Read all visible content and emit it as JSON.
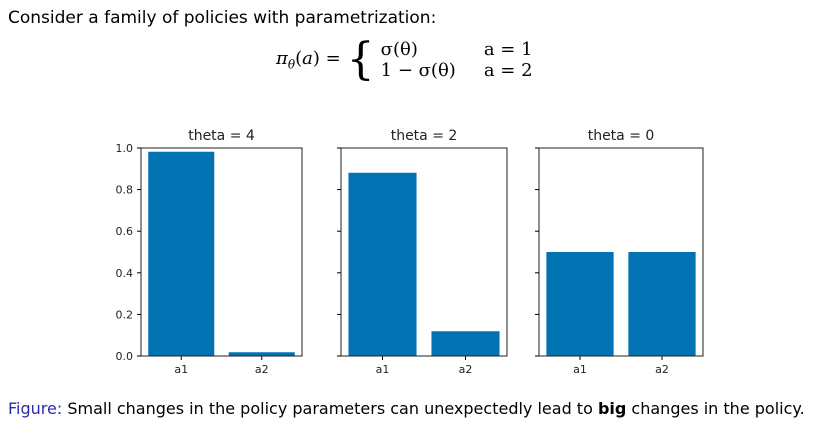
{
  "intro": "Consider a family of policies with parametrization:",
  "equation": {
    "lhs": "πθ(a) =",
    "cases": [
      {
        "expr": "σ(θ)",
        "cond": "a = 1"
      },
      {
        "expr": "1 − σ(θ)",
        "cond": "a = 2"
      }
    ]
  },
  "caption": {
    "label": "Figure:",
    "text_before": " Small changes in the policy parameters can unexpectedly lead to ",
    "bold": "big",
    "text_after": " changes in the policy."
  },
  "colors": {
    "bar": "#0173b2",
    "caption_label": "#2a2ab0"
  },
  "chart_data": [
    {
      "type": "bar",
      "title": "theta = 4",
      "categories": [
        "a1",
        "a2"
      ],
      "values": [
        0.982,
        0.018
      ],
      "ylim": [
        0,
        1
      ],
      "yticks": [
        "0.0",
        "0.2",
        "0.4",
        "0.6",
        "0.8",
        "1.0"
      ],
      "grid": false
    },
    {
      "type": "bar",
      "title": "theta = 2",
      "categories": [
        "a1",
        "a2"
      ],
      "values": [
        0.881,
        0.119
      ],
      "ylim": [
        0,
        1
      ],
      "grid": false
    },
    {
      "type": "bar",
      "title": "theta = 0",
      "categories": [
        "a1",
        "a2"
      ],
      "values": [
        0.5,
        0.5
      ],
      "ylim": [
        0,
        1
      ],
      "grid": false
    }
  ]
}
